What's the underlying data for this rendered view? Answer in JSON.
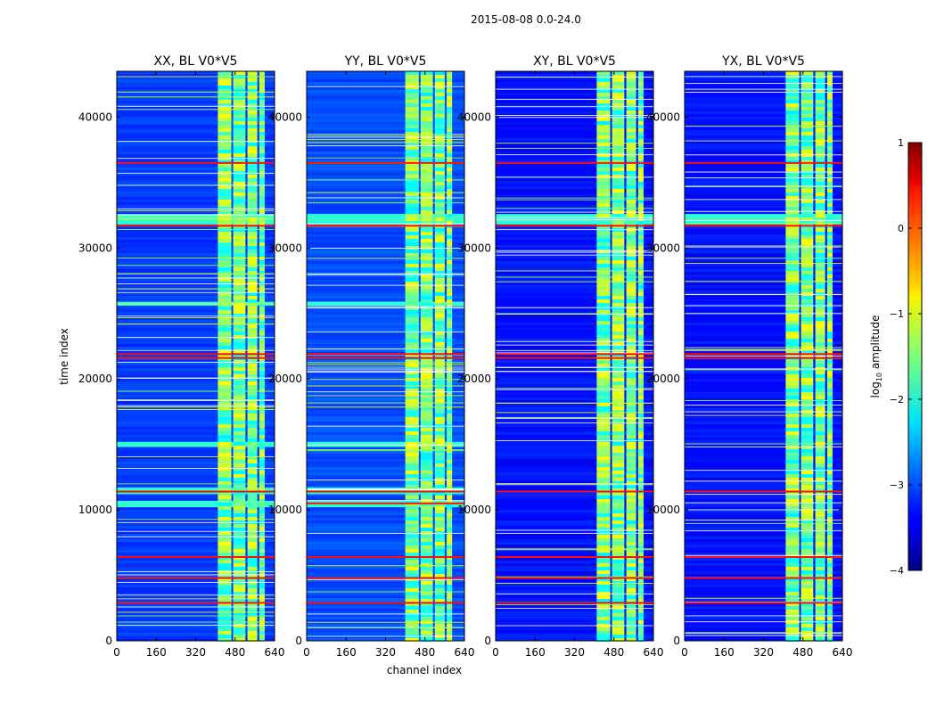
{
  "figure": {
    "suptitle": "2015-08-08 0.0-24.0",
    "xlabel": "channel index",
    "ylabel": "time index"
  },
  "colorbar": {
    "label": "log",
    "label_sub": "10",
    "label_tail": " amplitude",
    "range": [
      -4,
      1
    ],
    "ticks": [
      1,
      0,
      -1,
      -2,
      -3,
      -4
    ],
    "tick_labels": [
      "1",
      "0",
      "−1",
      "−2",
      "−3",
      "−4"
    ],
    "colormap": "jet"
  },
  "chart_data": [
    {
      "type": "heatmap",
      "title": "XX, BL V0*V5",
      "xlabel": "channel index",
      "ylabel": "time index",
      "xlim": [
        0,
        640
      ],
      "ylim": [
        0,
        43500
      ],
      "xticks": [
        0,
        160,
        320,
        480,
        640
      ],
      "yticks": [
        0,
        10000,
        20000,
        30000,
        40000
      ],
      "ytick_labels": [
        "0",
        "10000",
        "20000",
        "30000",
        "40000"
      ],
      "background_log_amp": -3.1,
      "rfi_channel_band": [
        410,
        600
      ],
      "flagged_time_rows": [
        2900,
        4800,
        6400,
        11400,
        21600,
        21900,
        31700,
        36500
      ],
      "elevated_time_bands": [
        [
          10200,
          10700
        ],
        [
          11200,
          11700
        ],
        [
          14800,
          15200
        ],
        [
          25600,
          25900
        ],
        [
          31800,
          32600
        ]
      ]
    },
    {
      "type": "heatmap",
      "title": "YY, BL V0*V5",
      "xlabel": "channel index",
      "ylabel": "time index",
      "xlim": [
        0,
        640
      ],
      "ylim": [
        0,
        43500
      ],
      "xticks": [
        0,
        160,
        320,
        480,
        640
      ],
      "yticks": [
        0,
        10000,
        20000,
        30000,
        40000
      ],
      "ytick_labels": [
        "0",
        "10000",
        "20000",
        "30000",
        "40000"
      ],
      "background_log_amp": -3.0,
      "rfi_channel_band": [
        400,
        590
      ],
      "flagged_time_rows": [
        2900,
        4800,
        6400,
        10500,
        11400,
        21600,
        21900,
        31700,
        36500
      ],
      "elevated_time_bands": [
        [
          10200,
          10700
        ],
        [
          11200,
          11700
        ],
        [
          14800,
          15200
        ],
        [
          25600,
          25900
        ],
        [
          31800,
          32600
        ]
      ]
    },
    {
      "type": "heatmap",
      "title": "XY, BL V0*V5",
      "xlabel": "channel index",
      "ylabel": "time index",
      "xlim": [
        0,
        640
      ],
      "ylim": [
        0,
        43500
      ],
      "xticks": [
        0,
        160,
        320,
        480,
        640
      ],
      "yticks": [
        0,
        10000,
        20000,
        30000,
        40000
      ],
      "ytick_labels": [
        "0",
        "10000",
        "20000",
        "30000",
        "40000"
      ],
      "background_log_amp": -3.3,
      "rfi_channel_band": [
        410,
        600
      ],
      "flagged_time_rows": [
        2900,
        4800,
        6400,
        11400,
        21600,
        21900,
        31700,
        36500
      ],
      "elevated_time_bands": [
        [
          31800,
          32600
        ]
      ]
    },
    {
      "type": "heatmap",
      "title": "YX, BL V0*V5",
      "xlabel": "channel index",
      "ylabel": "time index",
      "xlim": [
        0,
        640
      ],
      "ylim": [
        0,
        43500
      ],
      "xticks": [
        0,
        160,
        320,
        480,
        640
      ],
      "yticks": [
        0,
        10000,
        20000,
        30000,
        40000
      ],
      "ytick_labels": [
        "0",
        "10000",
        "20000",
        "30000",
        "40000"
      ],
      "background_log_amp": -3.3,
      "rfi_channel_band": [
        410,
        600
      ],
      "flagged_time_rows": [
        2900,
        4800,
        6400,
        11400,
        21600,
        21900,
        31700,
        36500
      ],
      "elevated_time_bands": [
        [
          31800,
          32600
        ]
      ]
    }
  ]
}
